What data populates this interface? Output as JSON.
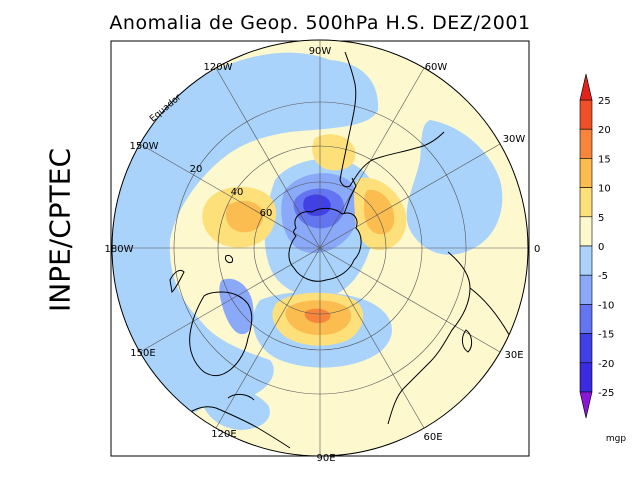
{
  "title": "Anomalia de Geop. 500hPa H.S. DEZ/2001",
  "side_label": "INPE/CPTEC",
  "units": "mgp",
  "longitude_labels": {
    "lon_0": "0",
    "lon_30w": "30W",
    "lon_60w": "60W",
    "lon_90w": "90W",
    "lon_120w": "120W",
    "lon_150w": "150W",
    "lon_180w": "180W",
    "lon_150e": "150E",
    "lon_120e": "120E",
    "lon_90e": "90E",
    "lon_60e": "60E",
    "lon_30e": "30E"
  },
  "latitude_labels": {
    "lat_60": "60",
    "lat_40": "40",
    "lat_20": "20",
    "equator": "Equador"
  },
  "colorbar": {
    "ticks": [
      "25",
      "20",
      "15",
      "10",
      "5",
      "0",
      "-5",
      "-10",
      "-15",
      "-20",
      "-25"
    ],
    "bins": [
      {
        "from": 20,
        "to": 25,
        "color": "#f05028"
      },
      {
        "from": 15,
        "to": 20,
        "color": "#f7863c"
      },
      {
        "from": 10,
        "to": 15,
        "color": "#fbbd50"
      },
      {
        "from": 5,
        "to": 10,
        "color": "#fde07a"
      },
      {
        "from": 0,
        "to": 5,
        "color": "#fef8cf"
      },
      {
        "from": -5,
        "to": 0,
        "color": "#a9d3fb"
      },
      {
        "from": -10,
        "to": -5,
        "color": "#8aa9f8"
      },
      {
        "from": -15,
        "to": -10,
        "color": "#6475f2"
      },
      {
        "from": -20,
        "to": -15,
        "color": "#4040e6"
      },
      {
        "from": -25,
        "to": -20,
        "color": "#3a2ae0"
      }
    ],
    "overflow_high_color": "#e0241c",
    "overflow_low_color": "#8a16d8"
  },
  "colors": {
    "frame": "#000000",
    "grid": "#555555",
    "coast": "#000000",
    "ocean_bg": "#fef8cf"
  }
}
